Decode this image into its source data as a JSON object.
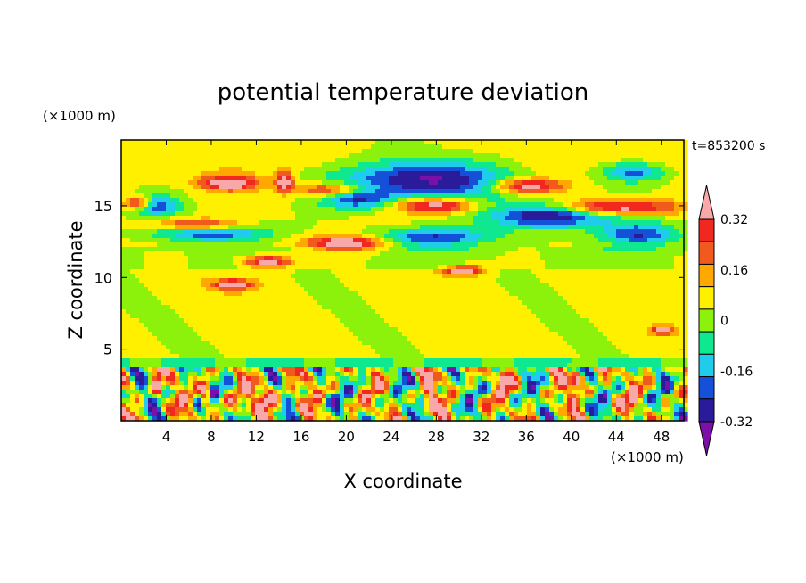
{
  "chart_data": {
    "type": "heatmap",
    "title": "potential temperature deviation",
    "xlabel": "X coordinate",
    "ylabel": "Z coordinate",
    "x_unit": "(×1000 m)",
    "y_unit": "(×1000 m)",
    "time_label": "t=853200 s",
    "xlim": [
      0,
      50
    ],
    "ylim": [
      0,
      19.6
    ],
    "x_ticks": [
      4,
      8,
      12,
      16,
      20,
      24,
      28,
      32,
      36,
      40,
      44,
      48
    ],
    "y_ticks": [
      5,
      10,
      15
    ],
    "colorbar": {
      "levels": [
        -0.4,
        -0.32,
        -0.24,
        -0.16,
        -0.08,
        0,
        0.08,
        0.16,
        0.24,
        0.32,
        0.4
      ],
      "tick_labels": [
        "0.32",
        "0.16",
        "0",
        "-0.16",
        "-0.32"
      ],
      "tick_values": [
        0.32,
        0.16,
        0,
        -0.16,
        -0.32
      ],
      "colors": [
        "#7B10A8",
        "#2A1B9A",
        "#1450D8",
        "#20CCEC",
        "#10E890",
        "#8CF20C",
        "#FFF000",
        "#FFA800",
        "#F05A1C",
        "#F02820",
        "#F8A8A8"
      ],
      "extend": "both"
    },
    "features": [
      {
        "kind": "band",
        "x0": 0,
        "x1": 50,
        "z": 18.0,
        "w": 1.0,
        "v": 0.05
      },
      {
        "kind": "blob",
        "x": 27,
        "z": 16.9,
        "rx": 9,
        "rz": 1.7,
        "v": -0.45
      },
      {
        "kind": "blob",
        "x": 21,
        "z": 15.6,
        "rx": 3.5,
        "rz": 0.9,
        "v": -0.35
      },
      {
        "kind": "blob",
        "x": 38,
        "z": 14.3,
        "rx": 6,
        "rz": 1.0,
        "v": -0.45
      },
      {
        "kind": "blob",
        "x": 8,
        "z": 13.2,
        "rx": 6,
        "rz": 0.9,
        "v": -0.35
      },
      {
        "kind": "blob",
        "x": 28,
        "z": 12.8,
        "rx": 6,
        "rz": 0.8,
        "v": -0.35
      },
      {
        "kind": "blob",
        "x": 46,
        "z": 13.0,
        "rx": 4,
        "rz": 1.0,
        "v": -0.35
      },
      {
        "kind": "blob",
        "x": 3,
        "z": 15.0,
        "rx": 2.5,
        "rz": 0.8,
        "v": -0.32
      },
      {
        "kind": "blob",
        "x": 45.5,
        "z": 17.4,
        "rx": 3.5,
        "rz": 0.8,
        "v": -0.3
      },
      {
        "kind": "blob",
        "x": 9.5,
        "z": 16.6,
        "rx": 3,
        "rz": 0.6,
        "v": 0.42
      },
      {
        "kind": "blob",
        "x": 14.5,
        "z": 16.7,
        "rx": 0.9,
        "rz": 0.8,
        "v": 0.42
      },
      {
        "kind": "blob",
        "x": 19,
        "z": 16.1,
        "rx": 4,
        "rz": 0.6,
        "v": 0.42
      },
      {
        "kind": "blob",
        "x": 36,
        "z": 16.4,
        "rx": 3.5,
        "rz": 0.6,
        "v": 0.42
      },
      {
        "kind": "blob",
        "x": 1.5,
        "z": 15.2,
        "rx": 1.4,
        "rz": 0.5,
        "v": 0.42
      },
      {
        "kind": "blob",
        "x": 7,
        "z": 13.7,
        "rx": 4.5,
        "rz": 0.5,
        "v": 0.42
      },
      {
        "kind": "blob",
        "x": 20,
        "z": 12.4,
        "rx": 4,
        "rz": 0.6,
        "v": 0.42
      },
      {
        "kind": "blob",
        "x": 28,
        "z": 15.0,
        "rx": 4,
        "rz": 0.6,
        "v": 0.42
      },
      {
        "kind": "blob",
        "x": 44,
        "z": 14.9,
        "rx": 6,
        "rz": 0.6,
        "v": 0.42
      },
      {
        "kind": "blob",
        "x": 13,
        "z": 11.1,
        "rx": 2.5,
        "rz": 0.5,
        "v": 0.42
      },
      {
        "kind": "blob",
        "x": 10,
        "z": 9.5,
        "rx": 2,
        "rz": 0.4,
        "v": 0.42
      },
      {
        "kind": "blob",
        "x": 30.5,
        "z": 10.5,
        "rx": 2,
        "rz": 0.4,
        "v": 0.42
      },
      {
        "kind": "blob",
        "x": 48,
        "z": 6.3,
        "rx": 1,
        "rz": 0.3,
        "v": 0.42
      },
      {
        "kind": "blob",
        "x": 13,
        "z": 1.4,
        "rx": 1.3,
        "rz": 1.2,
        "v": 0.45
      },
      {
        "kind": "blob",
        "x": 27.5,
        "z": 1.8,
        "rx": 0.4,
        "rz": 1.4,
        "v": 0.45
      },
      {
        "kind": "blob",
        "x": 7.5,
        "z": 1.8,
        "rx": 0.4,
        "rz": 1.4,
        "v": 0.45
      },
      {
        "kind": "blob",
        "x": 40.5,
        "z": 2.8,
        "rx": 0.6,
        "rz": 0.8,
        "v": 0.45
      },
      {
        "kind": "blob",
        "x": 3.2,
        "z": 2.6,
        "rx": 0.5,
        "rz": 0.9,
        "v": 0.45
      },
      {
        "kind": "blob",
        "x": 34,
        "z": 2.9,
        "rx": 0.5,
        "rz": 0.6,
        "v": 0.45
      },
      {
        "kind": "blob",
        "x": 45.5,
        "z": 1.6,
        "rx": 0.4,
        "rz": 1.0,
        "v": 0.45
      }
    ]
  }
}
